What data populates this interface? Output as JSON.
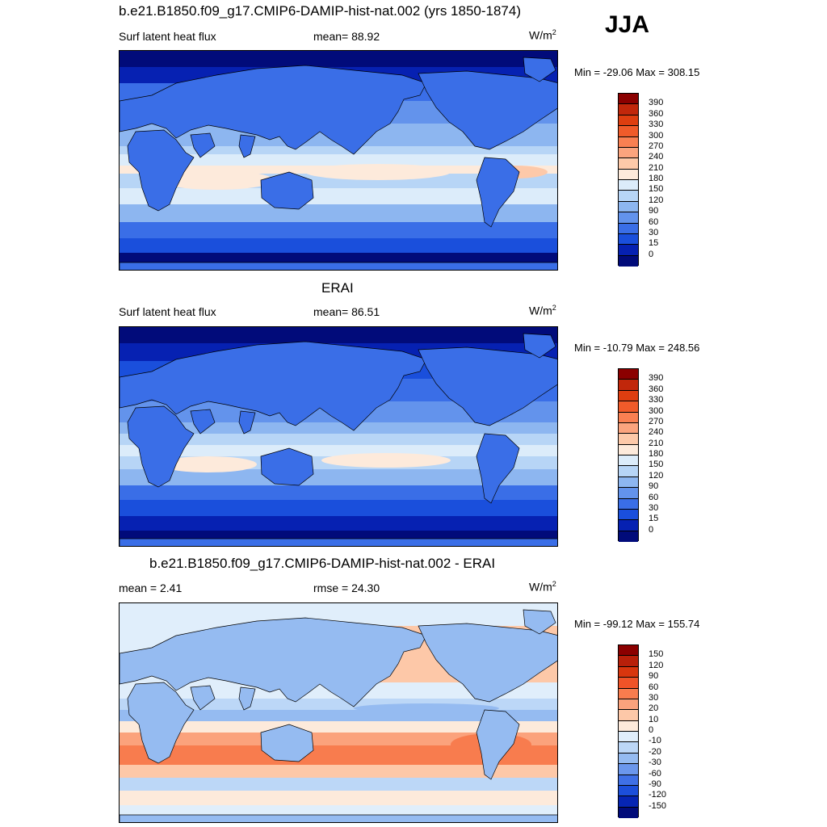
{
  "season": "JJA",
  "panels": [
    {
      "title": "b.e21.B1850.f09_g17.CMIP6-DAMIP-hist-nat.002 (yrs 1850-1874)",
      "left_label": "Surf latent heat flux",
      "center_label": "mean=  88.92",
      "unit_base": "W/m",
      "unit_exp": "2",
      "minmax": "Min = -29.06 Max = 308.15",
      "colorbar_labels": [
        "390",
        "360",
        "330",
        "300",
        "270",
        "240",
        "210",
        "180",
        "150",
        "120",
        "90",
        "60",
        "30",
        "15",
        "0"
      ],
      "colorbar_colors": [
        "#8b0000",
        "#c1270b",
        "#de3e10",
        "#f05b2a",
        "#f98052",
        "#fba47e",
        "#fdc9a9",
        "#fdeadb",
        "#dcecfa",
        "#b7d5f6",
        "#8db6f0",
        "#6393ec",
        "#3a6ee7",
        "#1a4fdc",
        "#0621b2",
        "#010b7a"
      ],
      "field_type": "flux"
    },
    {
      "title": "ERAI",
      "left_label": "Surf latent heat flux",
      "center_label": "mean=  86.51",
      "unit_base": "W/m",
      "unit_exp": "2",
      "minmax": "Min = -10.79 Max = 248.56",
      "colorbar_labels": [
        "390",
        "360",
        "330",
        "300",
        "270",
        "240",
        "210",
        "180",
        "150",
        "120",
        "90",
        "60",
        "30",
        "15",
        "0"
      ],
      "colorbar_colors": [
        "#8b0000",
        "#c1270b",
        "#de3e10",
        "#f05b2a",
        "#f98052",
        "#fba47e",
        "#fdc9a9",
        "#fdeadb",
        "#dcecfa",
        "#b7d5f6",
        "#8db6f0",
        "#6393ec",
        "#3a6ee7",
        "#1a4fdc",
        "#0621b2",
        "#010b7a"
      ],
      "field_type": "flux"
    },
    {
      "title": "b.e21.B1850.f09_g17.CMIP6-DAMIP-hist-nat.002 - ERAI",
      "left_label": "mean =   2.41",
      "center_label": "rmse =  24.30",
      "unit_base": "W/m",
      "unit_exp": "2",
      "minmax": "Min = -99.12 Max = 155.74",
      "colorbar_labels": [
        "150",
        "120",
        "90",
        "60",
        "30",
        "20",
        "10",
        "0",
        "-10",
        "-20",
        "-30",
        "-60",
        "-90",
        "-120",
        "-150"
      ],
      "colorbar_colors": [
        "#8b0000",
        "#b8200a",
        "#d8360e",
        "#ef5328",
        "#f87c4e",
        "#fba27c",
        "#fdc8a8",
        "#fdeadb",
        "#e0eefb",
        "#bcd7f7",
        "#95bbf1",
        "#6b97ec",
        "#3f70e6",
        "#1c4fda",
        "#0625b4",
        "#010b7a"
      ],
      "field_type": "diff"
    }
  ]
}
